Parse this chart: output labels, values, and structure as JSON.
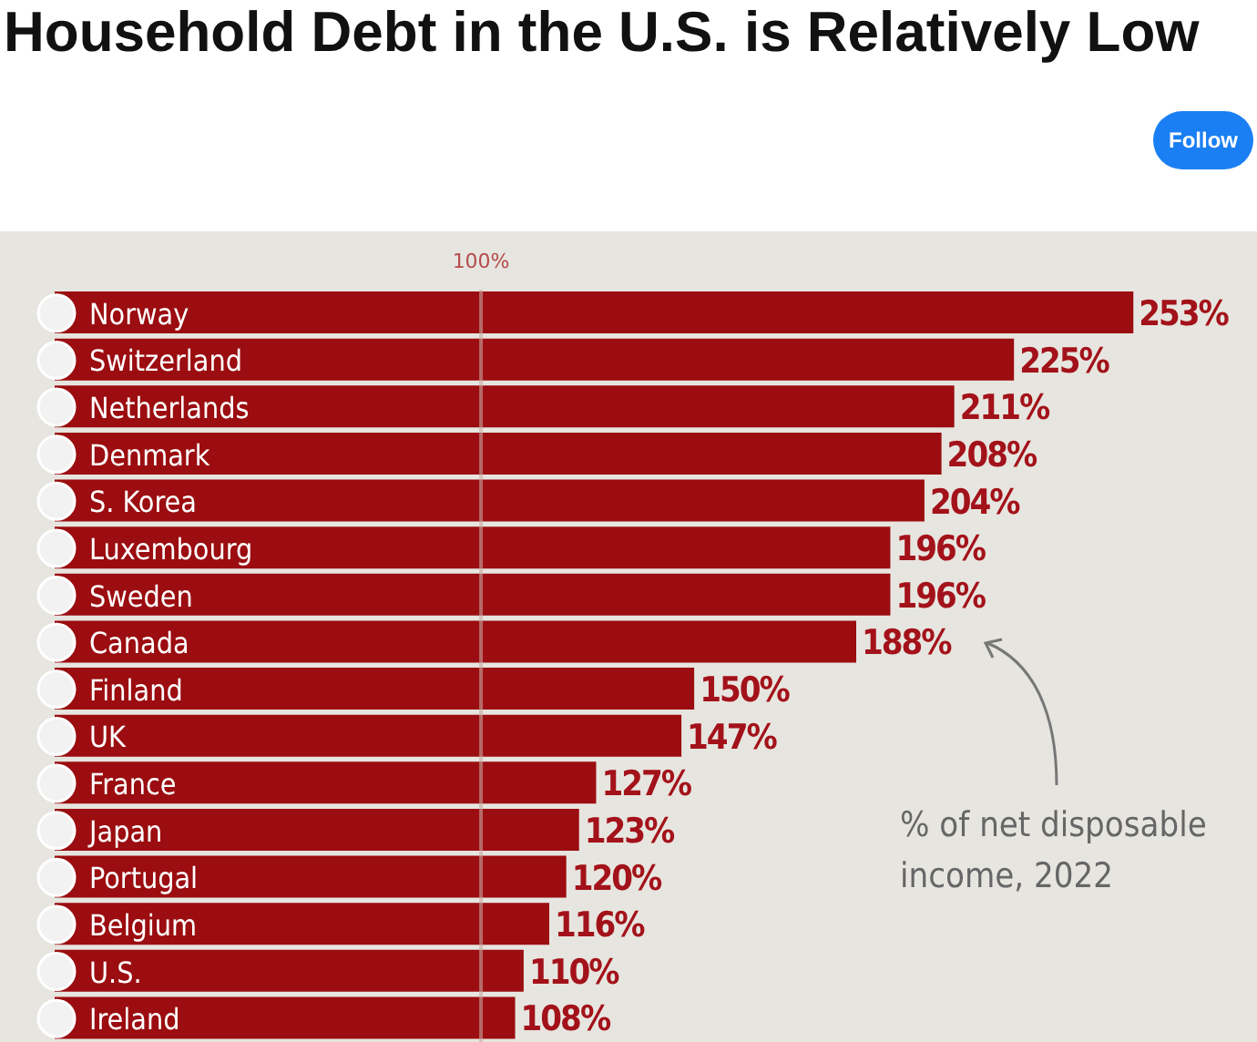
{
  "chart_data": {
    "type": "bar",
    "orientation": "horizontal",
    "title": "Household Debt in the U.S. is Relatively Low",
    "categories": [
      "Norway",
      "Switzerland",
      "Netherlands",
      "Denmark",
      "S. Korea",
      "Luxembourg",
      "Sweden",
      "Canada",
      "Finland",
      "UK",
      "France",
      "Japan",
      "Portugal",
      "Belgium",
      "U.S.",
      "Ireland"
    ],
    "values": [
      253,
      225,
      211,
      208,
      204,
      196,
      196,
      188,
      150,
      147,
      127,
      123,
      120,
      116,
      110,
      108
    ],
    "value_labels": [
      "253%",
      "225%",
      "211%",
      "208%",
      "204%",
      "196%",
      "196%",
      "188%",
      "150%",
      "147%",
      "127%",
      "123%",
      "120%",
      "116%",
      "110%",
      "108%"
    ],
    "color": "#9b0d10",
    "xlim": [
      0,
      282
    ],
    "tick_labels": "y",
    "grid": false,
    "legend": false,
    "ref_lines": [
      {
        "axis": "x",
        "value": 100,
        "label": "100%",
        "color": "#c9a8a4"
      }
    ],
    "annotations": [
      "% of net disposable income, 2022",
      "Follow"
    ]
  }
}
